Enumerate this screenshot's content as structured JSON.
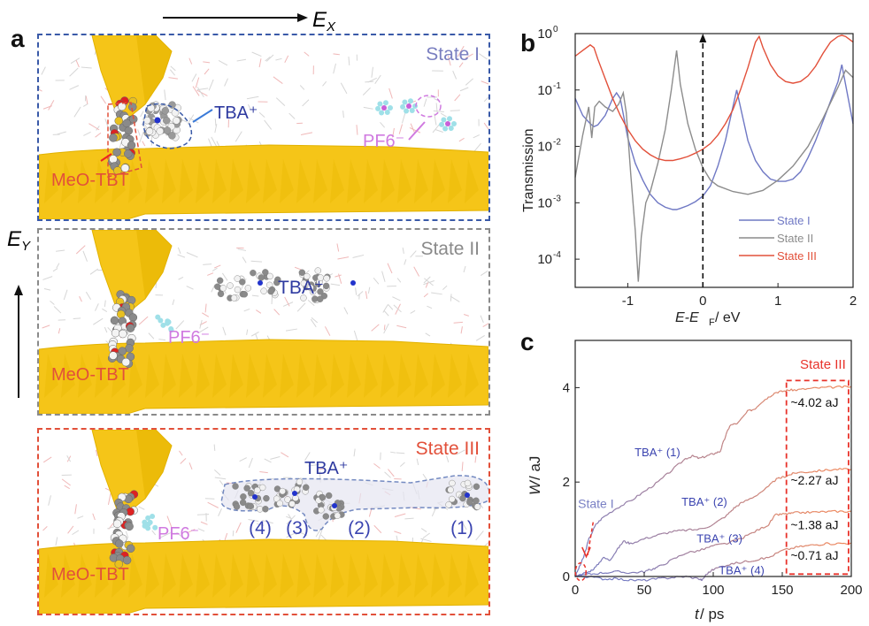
{
  "panel_a": {
    "letter": "a",
    "field_x": {
      "label": "E",
      "sub": "X"
    },
    "field_y": {
      "label": "E",
      "sub": "Y"
    },
    "states": [
      {
        "label": "State I",
        "color": "#7a7fc0",
        "border": "#3a5aa8",
        "labels": {
          "molecule": "MeO-TBT",
          "cation": "TBA⁺",
          "anion": "PF6⁻"
        }
      },
      {
        "label": "State II",
        "color": "#8a8a8a",
        "border": "#8a8a8a",
        "labels": {
          "molecule": "MeO-TBT",
          "cation": "TBA⁺",
          "anion": "PF6⁻"
        }
      },
      {
        "label": "State III",
        "color": "#e2503a",
        "border": "#e2503a",
        "labels": {
          "molecule": "MeO-TBT",
          "cation": "TBA⁺",
          "anion": "PF6⁻",
          "indices": [
            "(4)",
            "(3)",
            "(2)",
            "(1)"
          ]
        }
      }
    ],
    "colors": {
      "gold": "#f5c518",
      "molecule": "#e2503a",
      "cation": "#2e3aa0",
      "anion": "#d07ae0"
    }
  },
  "chart_data": [
    {
      "id": "b",
      "letter": "b",
      "type": "line",
      "yscale": "log",
      "xlabel": "E-E",
      "xlabel_sub": "F",
      "xlabel_unit": " / eV",
      "ylabel": "Transmission",
      "xlim": [
        -1.7,
        2
      ],
      "ylim_exp": [
        -4.5,
        0
      ],
      "xticks": [
        -1,
        0,
        1,
        2
      ],
      "xtick_labels": [
        "-1",
        "0",
        "1",
        "2"
      ],
      "yticks_exp": [
        0,
        -1,
        -2,
        -3,
        -4
      ],
      "ytick_labels": [
        "10",
        "10",
        "10",
        "10",
        "10"
      ],
      "ytick_sups": [
        "0",
        "-1",
        "-2",
        "-3",
        "-4"
      ],
      "fermi_line_x": 0,
      "legend": {
        "position": "bottom-right",
        "entries": [
          "State I",
          "State II",
          "State III"
        ]
      },
      "series": [
        {
          "name": "State I",
          "color": "#6f78c4",
          "x": [
            -1.7,
            -1.6,
            -1.5,
            -1.45,
            -1.4,
            -1.3,
            -1.2,
            -1.15,
            -1.1,
            -1.05,
            -1.0,
            -0.9,
            -0.8,
            -0.7,
            -0.6,
            -0.5,
            -0.4,
            -0.35,
            -0.3,
            -0.2,
            -0.1,
            0,
            0.1,
            0.2,
            0.3,
            0.4,
            0.45,
            0.5,
            0.6,
            0.7,
            0.8,
            0.9,
            1.0,
            1.1,
            1.2,
            1.3,
            1.4,
            1.5,
            1.6,
            1.7,
            1.8,
            1.85,
            1.9,
            2.0
          ],
          "log10y": [
            -1.15,
            -1.45,
            -1.6,
            -1.65,
            -1.62,
            -1.45,
            -1.15,
            -1.05,
            -1.15,
            -1.5,
            -1.85,
            -2.3,
            -2.6,
            -2.85,
            -3.0,
            -3.08,
            -3.12,
            -3.12,
            -3.1,
            -3.05,
            -2.98,
            -2.88,
            -2.7,
            -2.35,
            -1.9,
            -1.3,
            -1.0,
            -1.3,
            -1.9,
            -2.25,
            -2.45,
            -2.58,
            -2.62,
            -2.62,
            -2.58,
            -2.45,
            -2.2,
            -1.9,
            -1.55,
            -1.2,
            -0.85,
            -0.55,
            -0.9,
            -1.6
          ]
        },
        {
          "name": "State II",
          "color": "#8c8c8c",
          "x": [
            -1.7,
            -1.6,
            -1.52,
            -1.48,
            -1.44,
            -1.38,
            -1.3,
            -1.2,
            -1.12,
            -1.06,
            -1.02,
            -0.96,
            -0.9,
            -0.86,
            -0.82,
            -0.76,
            -0.7,
            -0.6,
            -0.5,
            -0.42,
            -0.35,
            -0.3,
            -0.2,
            -0.1,
            0,
            0.1,
            0.2,
            0.4,
            0.6,
            0.8,
            1.0,
            1.2,
            1.4,
            1.6,
            1.8,
            1.9,
            2.0
          ],
          "log10y": [
            -2.55,
            -1.8,
            -1.3,
            -1.85,
            -1.3,
            -1.2,
            -1.3,
            -1.38,
            -1.25,
            -1.05,
            -1.4,
            -2.5,
            -3.5,
            -4.4,
            -3.6,
            -3.0,
            -2.8,
            -2.3,
            -1.7,
            -1.0,
            -0.3,
            -0.9,
            -1.6,
            -2.05,
            -2.38,
            -2.6,
            -2.7,
            -2.8,
            -2.85,
            -2.78,
            -2.6,
            -2.35,
            -2.0,
            -1.5,
            -0.95,
            -0.65,
            -0.78
          ]
        },
        {
          "name": "State III",
          "color": "#e2503a",
          "x": [
            -1.7,
            -1.6,
            -1.5,
            -1.45,
            -1.4,
            -1.3,
            -1.2,
            -1.1,
            -1.0,
            -0.9,
            -0.8,
            -0.7,
            -0.6,
            -0.5,
            -0.4,
            -0.3,
            -0.2,
            -0.1,
            0,
            0.1,
            0.2,
            0.3,
            0.4,
            0.5,
            0.6,
            0.7,
            0.75,
            0.8,
            0.9,
            1.0,
            1.1,
            1.2,
            1.3,
            1.4,
            1.5,
            1.6,
            1.7,
            1.8,
            1.85,
            1.9,
            2.0
          ],
          "log10y": [
            -0.4,
            -0.3,
            -0.2,
            -0.25,
            -0.45,
            -0.8,
            -1.15,
            -1.45,
            -1.7,
            -1.9,
            -2.05,
            -2.15,
            -2.22,
            -2.25,
            -2.25,
            -2.22,
            -2.18,
            -2.12,
            -2.05,
            -1.95,
            -1.8,
            -1.6,
            -1.35,
            -1.0,
            -0.6,
            -0.15,
            -0.05,
            -0.25,
            -0.55,
            -0.75,
            -0.85,
            -0.88,
            -0.85,
            -0.75,
            -0.58,
            -0.35,
            -0.15,
            -0.05,
            -0.03,
            -0.05,
            -0.15
          ]
        }
      ]
    },
    {
      "id": "c",
      "letter": "c",
      "type": "line",
      "xlabel": "t",
      "xlabel_unit": " / ps",
      "ylabel": "W",
      "ylabel_unit": " / aJ",
      "xlim": [
        0,
        200
      ],
      "ylim": [
        0,
        5
      ],
      "xticks": [
        0,
        50,
        100,
        150,
        200
      ],
      "xtick_labels": [
        "0",
        "50",
        "100",
        "150",
        "200"
      ],
      "yticks": [
        0,
        2,
        4
      ],
      "ytick_labels": [
        "0",
        "2",
        "4"
      ],
      "state_box": {
        "label": "State III",
        "x_range": [
          153,
          198
        ],
        "y_range": [
          0.05,
          4.15
        ]
      },
      "state1_label": "State I",
      "annotations": [
        {
          "text": "~4.02 aJ",
          "x": 156,
          "y": 3.6
        },
        {
          "text": "~2.27 aJ",
          "x": 156,
          "y": 1.95
        },
        {
          "text": "~1.38 aJ",
          "x": 156,
          "y": 1.0
        },
        {
          "text": "~0.71 aJ",
          "x": 156,
          "y": 0.36
        }
      ],
      "series": [
        {
          "name": "TBA⁺ (1)",
          "label_x": 43,
          "label_y": 2.55,
          "final": 4.02,
          "x": [
            0,
            3,
            6,
            10,
            15,
            20,
            30,
            40,
            50,
            60,
            70,
            80,
            85,
            90,
            95,
            100,
            105,
            108,
            112,
            118,
            125,
            130,
            135,
            140,
            145,
            150,
            155,
            160,
            170,
            180,
            190,
            200
          ],
          "y": [
            0,
            0.2,
            0.4,
            0.8,
            1.1,
            1.25,
            1.45,
            1.6,
            1.8,
            2.0,
            2.25,
            2.5,
            2.55,
            2.5,
            2.55,
            2.6,
            2.65,
            2.9,
            3.2,
            3.25,
            3.5,
            3.55,
            3.7,
            3.8,
            3.9,
            3.92,
            3.95,
            3.95,
            3.98,
            4.0,
            4.01,
            4.02
          ]
        },
        {
          "name": "TBA⁺ (2)",
          "label_x": 77,
          "label_y": 1.5,
          "final": 2.27,
          "x": [
            0,
            5,
            10,
            15,
            20,
            25,
            30,
            35,
            40,
            50,
            60,
            70,
            80,
            90,
            100,
            110,
            115,
            120,
            130,
            140,
            145,
            150,
            155,
            160,
            170,
            180,
            190,
            200
          ],
          "y": [
            0,
            0.05,
            0.1,
            0.2,
            0.4,
            0.35,
            0.55,
            0.75,
            0.7,
            0.8,
            0.88,
            0.95,
            0.98,
            1.0,
            1.1,
            1.3,
            1.45,
            1.55,
            1.7,
            1.9,
            2.05,
            2.1,
            2.15,
            2.2,
            2.22,
            2.25,
            2.27,
            2.27
          ]
        },
        {
          "name": "TBA⁺ (3)",
          "label_x": 88,
          "label_y": 0.72,
          "final": 1.38,
          "x": [
            0,
            10,
            20,
            30,
            40,
            50,
            55,
            60,
            70,
            80,
            90,
            100,
            110,
            120,
            130,
            140,
            145,
            150,
            155,
            160,
            170,
            180,
            190,
            200
          ],
          "y": [
            0,
            0.05,
            0.08,
            0.1,
            0.08,
            0.1,
            0.15,
            0.2,
            0.35,
            0.5,
            0.55,
            0.65,
            0.7,
            0.8,
            0.95,
            1.1,
            1.3,
            1.32,
            1.33,
            1.35,
            1.36,
            1.37,
            1.38,
            1.38
          ]
        },
        {
          "name": "TBA⁺ (4)",
          "label_x": 104,
          "label_y": 0.05,
          "final": 0.71,
          "x": [
            0,
            10,
            20,
            30,
            40,
            50,
            60,
            70,
            80,
            90,
            92,
            95,
            100,
            110,
            120,
            130,
            140,
            150,
            160,
            170,
            180,
            190,
            200
          ],
          "y": [
            0,
            0.0,
            -0.05,
            -0.05,
            -0.08,
            -0.08,
            -0.05,
            -0.02,
            0.0,
            -0.05,
            -0.08,
            0.05,
            0.15,
            0.25,
            0.3,
            0.35,
            0.4,
            0.55,
            0.62,
            0.66,
            0.69,
            0.7,
            0.71
          ]
        }
      ],
      "color_start": "#6f78c4",
      "color_end": "#f0875a",
      "label_color": "#3b44b0",
      "box_color": "#e8322a"
    }
  ]
}
